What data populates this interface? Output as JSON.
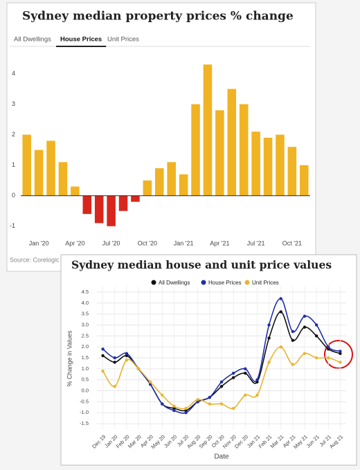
{
  "chart_data": [
    {
      "type": "bar",
      "title": "Sydney median property prices % change",
      "tabs": [
        "All Dwellings",
        "House Prices",
        "Unit Prices"
      ],
      "active_tab": 1,
      "categories": [
        null,
        "Jan '20",
        null,
        null,
        "Apr '20",
        null,
        null,
        "Jul '20",
        null,
        null,
        "Oct '20",
        null,
        null,
        "Jan '21",
        null,
        null,
        "Apr '21",
        null,
        null,
        "Jul '21",
        null,
        null,
        "Oct '21",
        null
      ],
      "values": [
        2.0,
        1.5,
        1.8,
        1.1,
        0.3,
        -0.6,
        -0.9,
        -1.0,
        -0.5,
        -0.2,
        0.5,
        0.9,
        1.1,
        0.7,
        3.0,
        4.3,
        2.8,
        3.5,
        3.0,
        2.1,
        1.9,
        2.0,
        1.6,
        1.0
      ],
      "color": "#f0b323",
      "negative_color": "#d9261c",
      "ylim": [
        -1.3,
        4.6
      ],
      "yticks": [
        -1,
        0,
        1,
        2,
        3,
        4
      ],
      "grid": false,
      "source": "Source: Corelogic"
    },
    {
      "type": "line",
      "title": "Sydney median house and unit price values",
      "xlabel": "Date",
      "ylabel": "% Change in Values",
      "categories": [
        "Dec 19",
        "Jan 20",
        "Feb 20",
        "Mar 20",
        "Apr 20",
        "May 20",
        "Jun 20",
        "Jul 20",
        "Aug 20",
        "Sep 20",
        "Oct 20",
        "Nov 20",
        "Dec 20",
        "Jan 21",
        "Feb 21",
        "Mar 21",
        "Apr 21",
        "May 21",
        "Jun 21",
        "Jul 21",
        "Aug 21"
      ],
      "series": [
        {
          "name": "All Dwellings",
          "color": "#111111",
          "values": [
            1.6,
            1.3,
            1.6,
            1.0,
            0.3,
            -0.6,
            -0.8,
            -0.9,
            -0.5,
            -0.3,
            0.2,
            0.6,
            0.8,
            0.4,
            2.4,
            3.6,
            2.3,
            2.9,
            2.5,
            1.9,
            1.7
          ]
        },
        {
          "name": "House Prices",
          "color": "#1f2fa8",
          "values": [
            1.9,
            1.5,
            1.7,
            1.0,
            0.3,
            -0.6,
            -0.9,
            -1.0,
            -0.5,
            -0.3,
            0.4,
            0.8,
            1.0,
            0.5,
            3.0,
            4.2,
            2.7,
            3.4,
            3.0,
            2.0,
            1.8
          ]
        },
        {
          "name": "Unit Prices",
          "color": "#e8b52e",
          "values": [
            0.9,
            0.2,
            1.4,
            1.0,
            0.4,
            -0.2,
            -0.7,
            -0.8,
            -0.4,
            -0.6,
            -0.6,
            -0.8,
            -0.2,
            -0.2,
            1.3,
            2.0,
            1.2,
            1.7,
            1.5,
            1.5,
            1.3
          ]
        }
      ],
      "ylim": [
        -1.75,
        4.75
      ],
      "yticks": [
        {
          "value": -1.5,
          "label": "-1.5"
        },
        {
          "value": -1,
          "label": "-1.0"
        },
        -0.5,
        {
          "value": 0,
          "label": "0.0"
        },
        0.5,
        {
          "value": 1,
          "label": "1.0"
        },
        1.5,
        {
          "value": 2,
          "label": "2.0"
        },
        2.5,
        {
          "value": 3,
          "label": "3.0"
        },
        3.5,
        {
          "value": 4,
          "label": "4.0"
        },
        4.5
      ],
      "grid": true
    }
  ]
}
